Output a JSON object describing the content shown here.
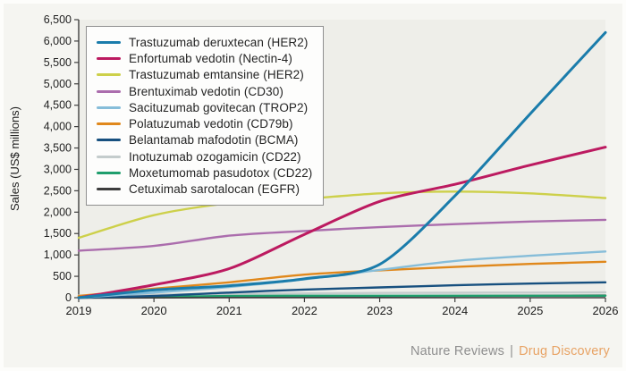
{
  "figure": {
    "ylabel": "Sales (US$ millions)",
    "footer": {
      "journal": "Nature Reviews",
      "separator": "|",
      "title": "Drug Discovery"
    }
  },
  "chart_data": {
    "type": "line",
    "x": [
      2019,
      2020,
      2021,
      2022,
      2023,
      2024,
      2025,
      2026
    ],
    "xtick_labels": [
      "2019",
      "2020",
      "2021",
      "2022",
      "2023",
      "2024",
      "2025",
      "2026"
    ],
    "ytick_values": [
      0,
      500,
      1000,
      1500,
      2000,
      2500,
      3000,
      3500,
      4000,
      4500,
      5000,
      5500,
      6000,
      6500
    ],
    "ytick_labels": [
      "0",
      "500",
      "1,000",
      "1,500",
      "2,000",
      "2,500",
      "3,000",
      "3,500",
      "4,000",
      "4,500",
      "5,000",
      "5,500",
      "6,000",
      "6,500"
    ],
    "xlabel": "",
    "ylabel": "Sales (US$ millions)",
    "ylim": [
      0,
      6500
    ],
    "xlim": [
      2019,
      2026
    ],
    "grid": false,
    "legend_position": "upper-left-inside",
    "series": [
      {
        "label": "Trastuzumab deruxtecan (HER2)",
        "color": "#1a7cab",
        "values": [
          0,
          180,
          280,
          440,
          780,
          2380,
          4300,
          6200
        ]
      },
      {
        "label": "Enfortumab vedotin (Nectin-4)",
        "color": "#bc1a60",
        "values": [
          0,
          300,
          680,
          1480,
          2250,
          2650,
          3100,
          3520
        ]
      },
      {
        "label": "Trastuzumab emtansine (HER2)",
        "color": "#cdd04a",
        "values": [
          1400,
          1930,
          2210,
          2310,
          2440,
          2480,
          2440,
          2330
        ]
      },
      {
        "label": "Brentuximab vedotin (CD30)",
        "color": "#ab6dad",
        "values": [
          1100,
          1210,
          1450,
          1560,
          1650,
          1720,
          1780,
          1820
        ]
      },
      {
        "label": "Sacituzumab govitecan (TROP2)",
        "color": "#86bdd9",
        "values": [
          0,
          120,
          250,
          430,
          650,
          860,
          980,
          1080
        ]
      },
      {
        "label": "Polatuzumab vedotin (CD79b)",
        "color": "#e0881c",
        "values": [
          40,
          210,
          360,
          540,
          640,
          720,
          790,
          840
        ]
      },
      {
        "label": "Belantamab mafodotin (BCMA)",
        "color": "#17507f",
        "values": [
          0,
          40,
          120,
          190,
          240,
          290,
          330,
          360
        ]
      },
      {
        "label": "Inotuzumab ozogamicin (CD22)",
        "color": "#c4cccc",
        "values": [
          50,
          70,
          90,
          100,
          110,
          115,
          120,
          125
        ]
      },
      {
        "label": "Moxetumomab pasudotox (CD22)",
        "color": "#1f9e6d",
        "values": [
          30,
          40,
          45,
          45,
          45,
          45,
          45,
          45
        ]
      },
      {
        "label": "Cetuximab sarotalocan (EGFR)",
        "color": "#3d3d3d",
        "values": [
          0,
          5,
          15,
          25,
          35,
          40,
          45,
          50
        ]
      }
    ]
  },
  "colors": {
    "plot_background": "#eeeee9",
    "figure_background": "#f5f5f1",
    "axis": "#3f3f3f",
    "tick_text": "#1e1e1e",
    "credit_gray": "#8f8f8f",
    "credit_orange": "#e8a365"
  }
}
